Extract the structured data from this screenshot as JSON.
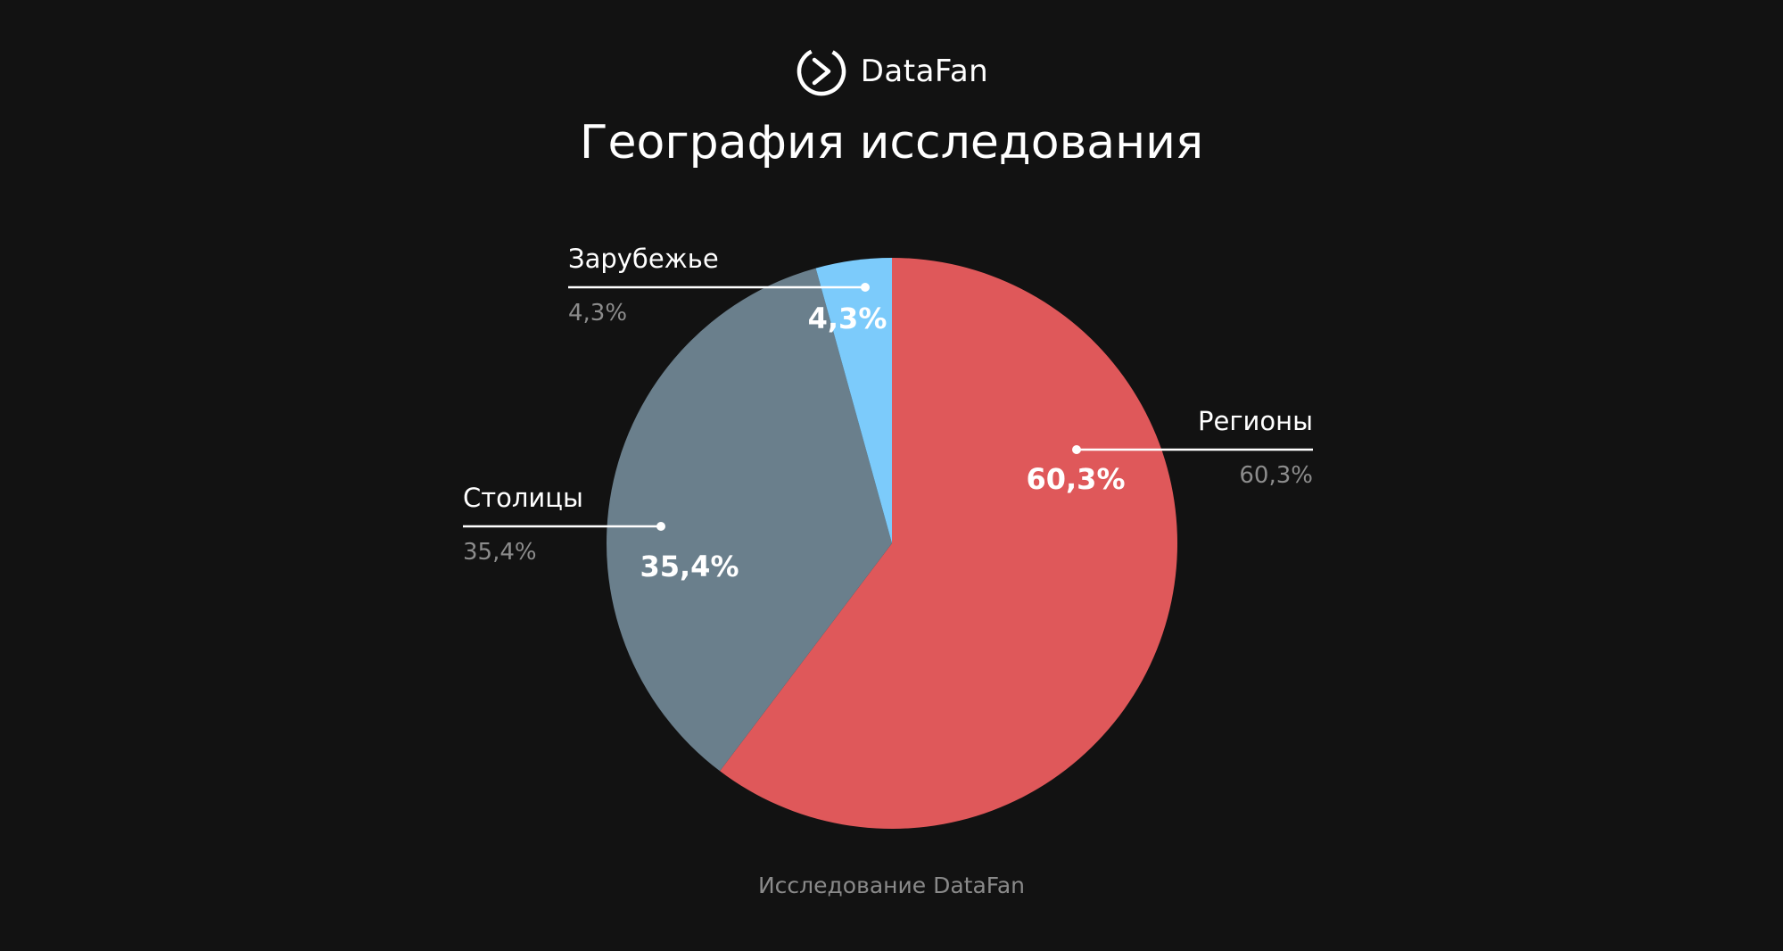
{
  "brand": {
    "name": "DataFan",
    "logo_icon": "play-chevron-circle-icon"
  },
  "title": "География исследования",
  "source": "Исследование DataFan",
  "colors": {
    "background": "#121212",
    "regions": "#df585a",
    "capitals": "#6a7f8c",
    "abroad": "#7ccbfb"
  },
  "chart_data": {
    "type": "pie",
    "start_angle_deg": 0,
    "direction": "clockwise",
    "legend": "callouts",
    "slices": [
      {
        "name": "Регионы",
        "value": 60.3,
        "label": "60,3%",
        "callout_value": "60,3%",
        "color": "#df585a"
      },
      {
        "name": "Столицы",
        "value": 35.4,
        "label": "35,4%",
        "callout_value": "35,4%",
        "color": "#6a7f8c"
      },
      {
        "name": "Зарубежье",
        "value": 4.3,
        "label": "4,3%",
        "callout_value": "4,3%",
        "color": "#7ccbfb"
      }
    ]
  }
}
